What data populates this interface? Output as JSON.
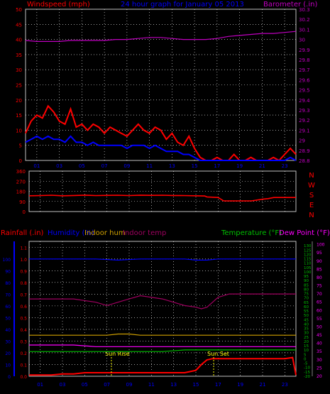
{
  "header": {
    "left_title": "Windspeed (mph)",
    "center_title": "24 hour graph for  January 05 2013",
    "right_title": "Barometer (.in)"
  },
  "colors": {
    "wind_gust": "#ff0000",
    "wind_avg": "#0000ff",
    "barometer": "#c000c0",
    "direction": "#ff0000",
    "rain": "#ff0000",
    "humidity": "#0000ff",
    "indoor_hum": "#d0a000",
    "indoor_temp": "#a00060",
    "temperature": "#00c000",
    "dew_point": "#ff00ff",
    "sun_marker": "#ffff00",
    "grid": "#ffffff",
    "frame": "#c0c0c0"
  },
  "hour_labels": [
    "01",
    "03",
    "05",
    "07",
    "09",
    "11",
    "13",
    "15",
    "17",
    "19",
    "21",
    "23"
  ],
  "compass_labels": [
    "N",
    "W",
    "S",
    "E",
    "N"
  ],
  "bottom_legend": {
    "rainfall": "Rainfall (.in)",
    "humidity": "Humidity (%)",
    "indoor_hum": "Indoor hum",
    "indoor_temp": "Indoor temp",
    "temperature": "Temperature (°F)",
    "dew_point": "Dew Point (°F)"
  },
  "annotations": {
    "sun_rise": "Sun Rise",
    "sun_set": "Sun Set"
  },
  "chart_data": [
    {
      "type": "line",
      "x_range_hours": [
        0,
        24
      ],
      "left_axis": {
        "ticks": [
          0,
          5,
          10,
          15,
          20,
          25,
          30,
          35,
          40,
          45,
          50
        ],
        "range": [
          0,
          50
        ]
      },
      "right_axis": {
        "ticks": [
          "28.8",
          "28.9",
          "29",
          "29.1",
          "29.2",
          "29.3",
          "29.4",
          "29.5",
          "29.6",
          "29.7",
          "29.8",
          "29.9",
          "30",
          "30.1",
          "30.2",
          "30.3"
        ],
        "range": [
          28.8,
          30.3
        ]
      },
      "grid": true,
      "series": [
        {
          "color_key": "wind_gust",
          "x": [
            0,
            0.5,
            1,
            1.5,
            2,
            2.5,
            3,
            3.5,
            4,
            4.5,
            5,
            5.5,
            6,
            6.5,
            7,
            7.5,
            8,
            8.5,
            9,
            9.5,
            10,
            10.5,
            11,
            11.5,
            12,
            12.5,
            13,
            13.5,
            14,
            14.5,
            15,
            15.5,
            16,
            16.5,
            17,
            17.5,
            18,
            18.5,
            19,
            19.5,
            20,
            20.5,
            21,
            21.5,
            22,
            22.5,
            23,
            23.5,
            24
          ],
          "y": [
            9,
            13,
            15,
            14,
            18,
            16,
            13,
            12,
            17,
            11,
            12,
            10,
            12,
            11,
            9,
            11,
            10,
            9,
            8,
            10,
            12,
            10,
            9,
            11,
            10,
            7,
            9,
            6,
            5,
            8,
            4,
            1,
            0,
            0,
            1,
            0,
            0,
            2,
            0,
            0,
            1,
            0,
            0,
            0,
            1,
            0,
            2,
            4,
            2
          ]
        },
        {
          "color_key": "wind_avg",
          "x": [
            0,
            0.5,
            1,
            1.5,
            2,
            2.5,
            3,
            3.5,
            4,
            4.5,
            5,
            5.5,
            6,
            6.5,
            7,
            7.5,
            8,
            8.5,
            9,
            9.5,
            10,
            10.5,
            11,
            11.5,
            12,
            12.5,
            13,
            13.5,
            14,
            14.5,
            15,
            15.5,
            16,
            16.5,
            17,
            17.5,
            18,
            18.5,
            19,
            19.5,
            20,
            20.5,
            21,
            21.5,
            22,
            22.5,
            23,
            23.5,
            24
          ],
          "y": [
            6,
            7,
            8,
            7,
            8,
            7,
            7,
            6,
            8,
            6,
            6,
            5,
            6,
            5,
            5,
            5,
            5,
            5,
            4,
            5,
            5,
            5,
            4,
            5,
            4,
            3,
            3,
            3,
            2,
            2,
            1,
            0,
            0,
            0,
            0,
            0,
            0,
            0,
            0,
            0,
            0,
            0,
            0,
            0,
            0,
            0,
            0,
            1,
            0
          ]
        },
        {
          "color_key": "barometer",
          "x": [
            0,
            1,
            2,
            3,
            4,
            5,
            6,
            7,
            8,
            9,
            10,
            11,
            12,
            13,
            14,
            15,
            16,
            17,
            18,
            19,
            20,
            21,
            22,
            23,
            24
          ],
          "y": [
            29.99,
            29.98,
            29.98,
            29.98,
            29.99,
            29.99,
            29.99,
            29.99,
            30.0,
            30.0,
            30.01,
            30.02,
            30.02,
            30.01,
            30.0,
            30.0,
            30.0,
            30.01,
            30.03,
            30.04,
            30.05,
            30.06,
            30.06,
            30.07,
            30.08
          ]
        }
      ]
    },
    {
      "type": "line",
      "x_range_hours": [
        0,
        24
      ],
      "left_axis": {
        "ticks": [
          0,
          90,
          180,
          270,
          360
        ],
        "range": [
          0,
          360
        ]
      },
      "grid": true,
      "series": [
        {
          "color_key": "direction",
          "x": [
            0,
            1,
            2,
            3,
            4,
            5,
            6,
            7,
            8,
            9,
            10,
            11,
            12,
            13,
            14,
            15,
            15.8,
            16,
            17,
            17.5,
            18,
            19,
            20,
            21,
            21.5,
            22,
            23,
            24
          ],
          "y": [
            140,
            142,
            145,
            140,
            143,
            146,
            142,
            144,
            145,
            142,
            146,
            144,
            145,
            143,
            142,
            140,
            138,
            130,
            125,
            95,
            95,
            95,
            95,
            110,
            115,
            125,
            125,
            125
          ]
        }
      ]
    },
    {
      "type": "line",
      "x_range_hours": [
        0,
        24
      ],
      "rain_axis": {
        "ticks": [
          "0.0",
          "0.1",
          "0.2",
          "0.3",
          "0.4",
          "0.5",
          "0.6",
          "0.7",
          "0.8",
          "0.9",
          "1.0",
          "1.1"
        ],
        "range": [
          0,
          1.15
        ]
      },
      "humidity_axis": {
        "ticks": [
          0,
          10,
          20,
          30,
          40,
          50,
          60,
          70,
          80,
          90,
          100
        ],
        "range": [
          0,
          115
        ]
      },
      "temp_axis_green": {
        "ticks": [
          -20,
          -15,
          -10,
          -5,
          0,
          5,
          10,
          15,
          20,
          25,
          30,
          35,
          40,
          45,
          50,
          55,
          60,
          65,
          70,
          75,
          80,
          85,
          90,
          95,
          100,
          105,
          110,
          115,
          120,
          125,
          130
        ],
        "range": [
          -20,
          135
        ]
      },
      "temp_axis_magenta": {
        "ticks": [
          20,
          25,
          30,
          35,
          40,
          45,
          50,
          55,
          60,
          65,
          70,
          75,
          80,
          85,
          90,
          95,
          100
        ],
        "range": [
          20,
          102
        ]
      },
      "grid": true,
      "series": [
        {
          "color_key": "humidity",
          "x": [
            0,
            2,
            4,
            6,
            8,
            10,
            12,
            14,
            15,
            16,
            17,
            18,
            20,
            22,
            24
          ],
          "y": [
            100,
            100,
            100,
            100,
            99,
            100,
            100,
            100,
            99,
            99,
            100,
            100,
            100,
            100,
            100
          ]
        },
        {
          "color_key": "indoor_temp",
          "x": [
            0,
            2,
            4,
            6,
            7,
            8,
            9,
            10,
            12,
            14,
            15,
            15.5,
            16,
            17,
            18,
            20,
            22,
            24
          ],
          "y": [
            67,
            67,
            67,
            65,
            63,
            65,
            67,
            69,
            67,
            63,
            62,
            61,
            62,
            68,
            70,
            70,
            70,
            70
          ]
        },
        {
          "color_key": "indoor_hum",
          "x": [
            0,
            2,
            4,
            6,
            7,
            8,
            9,
            10,
            12,
            14,
            16,
            18,
            20,
            22,
            24
          ],
          "y": [
            35,
            35,
            35,
            35,
            35,
            36,
            36,
            35,
            35,
            35,
            35,
            35,
            35,
            35,
            35
          ]
        },
        {
          "color_key": "dew_point",
          "x": [
            0,
            2,
            4,
            6,
            8,
            10,
            12,
            14,
            16,
            18,
            20,
            22,
            24
          ],
          "y": [
            39,
            39,
            39,
            38,
            38,
            38,
            38,
            38,
            38,
            38,
            38,
            38,
            38
          ]
        },
        {
          "color_key": "temperature",
          "x": [
            0,
            2,
            4,
            6,
            8,
            10,
            12,
            14,
            16,
            18,
            20,
            22,
            24
          ],
          "y": [
            35,
            35,
            35,
            35,
            35,
            35,
            35,
            36,
            36,
            36,
            36,
            36,
            36
          ]
        },
        {
          "color_key": "rain",
          "x": [
            0,
            0.5,
            1,
            2,
            3,
            4,
            5,
            6,
            7,
            8,
            9,
            10,
            11,
            12,
            13,
            14,
            15,
            15.5,
            16,
            16.5,
            17,
            18,
            19,
            20,
            21,
            22,
            23,
            23.7,
            24
          ],
          "y": [
            0.01,
            0.01,
            0.01,
            0.01,
            0.02,
            0.02,
            0.03,
            0.03,
            0.03,
            0.03,
            0.03,
            0.03,
            0.03,
            0.03,
            0.03,
            0.03,
            0.05,
            0.1,
            0.14,
            0.15,
            0.15,
            0.15,
            0.15,
            0.15,
            0.15,
            0.15,
            0.15,
            0.16,
            0.01
          ]
        }
      ]
    }
  ]
}
